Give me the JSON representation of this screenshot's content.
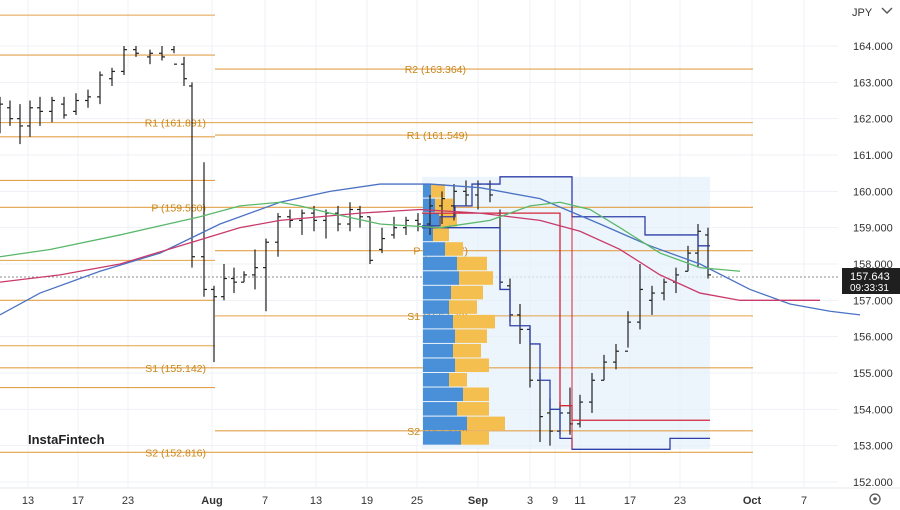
{
  "chart_data": {
    "type": "line",
    "symbol_label": "JPY",
    "ylim": [
      151.8,
      165.0
    ],
    "y_ticks": [
      "152.000",
      "153.000",
      "154.000",
      "155.000",
      "156.000",
      "157.000",
      "158.000",
      "159.000",
      "160.000",
      "161.000",
      "162.000",
      "163.000",
      "164.000"
    ],
    "x_ticks": [
      "13",
      "17",
      "23",
      "Aug",
      "7",
      "13",
      "19",
      "25",
      "Sep",
      "3",
      "9",
      "11",
      "17",
      "23",
      "Oct",
      "7"
    ],
    "price": {
      "value": "157.643",
      "countdown": "09:33:31"
    },
    "brand": "InstaFintech",
    "levels": [
      {
        "label": "R2 (163.364)",
        "value": 163.364
      },
      {
        "label": "R1 (161.891)",
        "value": 161.891
      },
      {
        "label": "R1 (161.549)",
        "value": 161.549
      },
      {
        "label": "P (159.560)",
        "value": 159.56
      },
      {
        "label": "P (158.367)",
        "value": 158.367
      },
      {
        "label": "S1 (156.572)",
        "value": 156.572
      },
      {
        "label": "S1 (155.142)",
        "value": 155.142
      },
      {
        "label": "S2 (152.816)",
        "value": 152.816
      },
      {
        "label": "S2 (153.410)",
        "value": 153.41
      }
    ],
    "unlabeled_levels": [
      164.85,
      163.75,
      161.5,
      160.3,
      158.1,
      157.0,
      155.75,
      154.6
    ],
    "series": [
      {
        "name": "",
        "color": "#4a72c4",
        "values": [
          [
            0,
            156.6
          ],
          [
            40,
            157.2
          ],
          [
            100,
            157.8
          ],
          [
            160,
            158.3
          ],
          [
            220,
            159.1
          ],
          [
            280,
            159.7
          ],
          [
            330,
            160.0
          ],
          [
            380,
            160.2
          ],
          [
            430,
            160.2
          ],
          [
            480,
            160.1
          ],
          [
            540,
            159.8
          ],
          [
            600,
            159.1
          ],
          [
            650,
            158.5
          ],
          [
            700,
            158.0
          ],
          [
            750,
            157.3
          ],
          [
            790,
            156.9
          ],
          [
            830,
            156.7
          ],
          [
            860,
            156.6
          ]
        ]
      },
      {
        "name": "",
        "color": "#c93a6a",
        "values": [
          [
            0,
            157.5
          ],
          [
            60,
            157.7
          ],
          [
            120,
            158.0
          ],
          [
            180,
            158.5
          ],
          [
            240,
            159.0
          ],
          [
            280,
            159.2
          ],
          [
            320,
            159.3
          ],
          [
            360,
            159.4
          ],
          [
            420,
            159.5
          ],
          [
            480,
            159.4
          ],
          [
            540,
            159.2
          ],
          [
            580,
            158.9
          ],
          [
            620,
            158.4
          ],
          [
            660,
            157.7
          ],
          [
            700,
            157.2
          ],
          [
            740,
            157.0
          ],
          [
            780,
            157.0
          ],
          [
            820,
            157.0
          ]
        ]
      },
      {
        "name": "",
        "color": "#5bb86b",
        "values": [
          [
            0,
            158.2
          ],
          [
            50,
            158.4
          ],
          [
            120,
            158.8
          ],
          [
            200,
            159.3
          ],
          [
            240,
            159.6
          ],
          [
            280,
            159.7
          ],
          [
            300,
            159.6
          ],
          [
            330,
            159.4
          ],
          [
            380,
            159.1
          ],
          [
            440,
            159.0
          ],
          [
            490,
            159.2
          ],
          [
            530,
            159.6
          ],
          [
            560,
            159.7
          ],
          [
            590,
            159.5
          ],
          [
            620,
            159.0
          ],
          [
            660,
            158.3
          ],
          [
            700,
            157.9
          ],
          [
            740,
            157.8
          ]
        ]
      }
    ],
    "grid": true,
    "price_axis_position": "right"
  }
}
